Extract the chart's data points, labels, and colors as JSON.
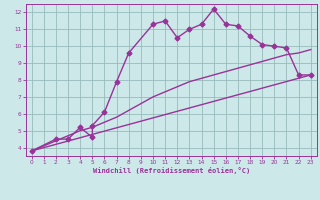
{
  "line1_x": [
    0,
    2,
    3,
    4,
    5,
    5,
    6,
    7,
    8,
    10,
    11,
    12,
    13,
    14,
    15,
    16,
    17,
    18,
    19,
    20,
    21,
    22,
    23
  ],
  "line1_y": [
    3.8,
    4.5,
    4.5,
    5.2,
    4.6,
    5.3,
    6.1,
    7.9,
    9.6,
    11.3,
    11.5,
    10.5,
    11.0,
    11.3,
    12.2,
    11.3,
    11.2,
    10.6,
    10.1,
    10.0,
    9.9,
    8.3,
    8.3
  ],
  "line2_x": [
    0,
    23
  ],
  "line2_y": [
    3.8,
    8.3
  ],
  "line3_x": [
    0,
    1,
    2,
    3,
    4,
    5,
    6,
    7,
    8,
    9,
    10,
    11,
    12,
    13,
    14,
    15,
    16,
    17,
    18,
    19,
    20,
    21,
    22,
    23
  ],
  "line3_y": [
    3.8,
    4.1,
    4.4,
    4.7,
    5.0,
    5.2,
    5.5,
    5.8,
    6.2,
    6.6,
    7.0,
    7.3,
    7.6,
    7.9,
    8.1,
    8.3,
    8.5,
    8.7,
    8.9,
    9.1,
    9.3,
    9.5,
    9.6,
    9.8
  ],
  "color": "#993399",
  "bg_color": "#cce8e8",
  "grid_color": "#99bbbb",
  "xlabel": "Windchill (Refroidissement éolien,°C)",
  "xlim": [
    -0.5,
    23.5
  ],
  "ylim": [
    3.5,
    12.5
  ],
  "xticks": [
    0,
    1,
    2,
    3,
    4,
    5,
    6,
    7,
    8,
    9,
    10,
    11,
    12,
    13,
    14,
    15,
    16,
    17,
    18,
    19,
    20,
    21,
    22,
    23
  ],
  "yticks": [
    4,
    5,
    6,
    7,
    8,
    9,
    10,
    11,
    12
  ],
  "marker": "D",
  "marker_size": 2.5,
  "line_width": 1.0
}
